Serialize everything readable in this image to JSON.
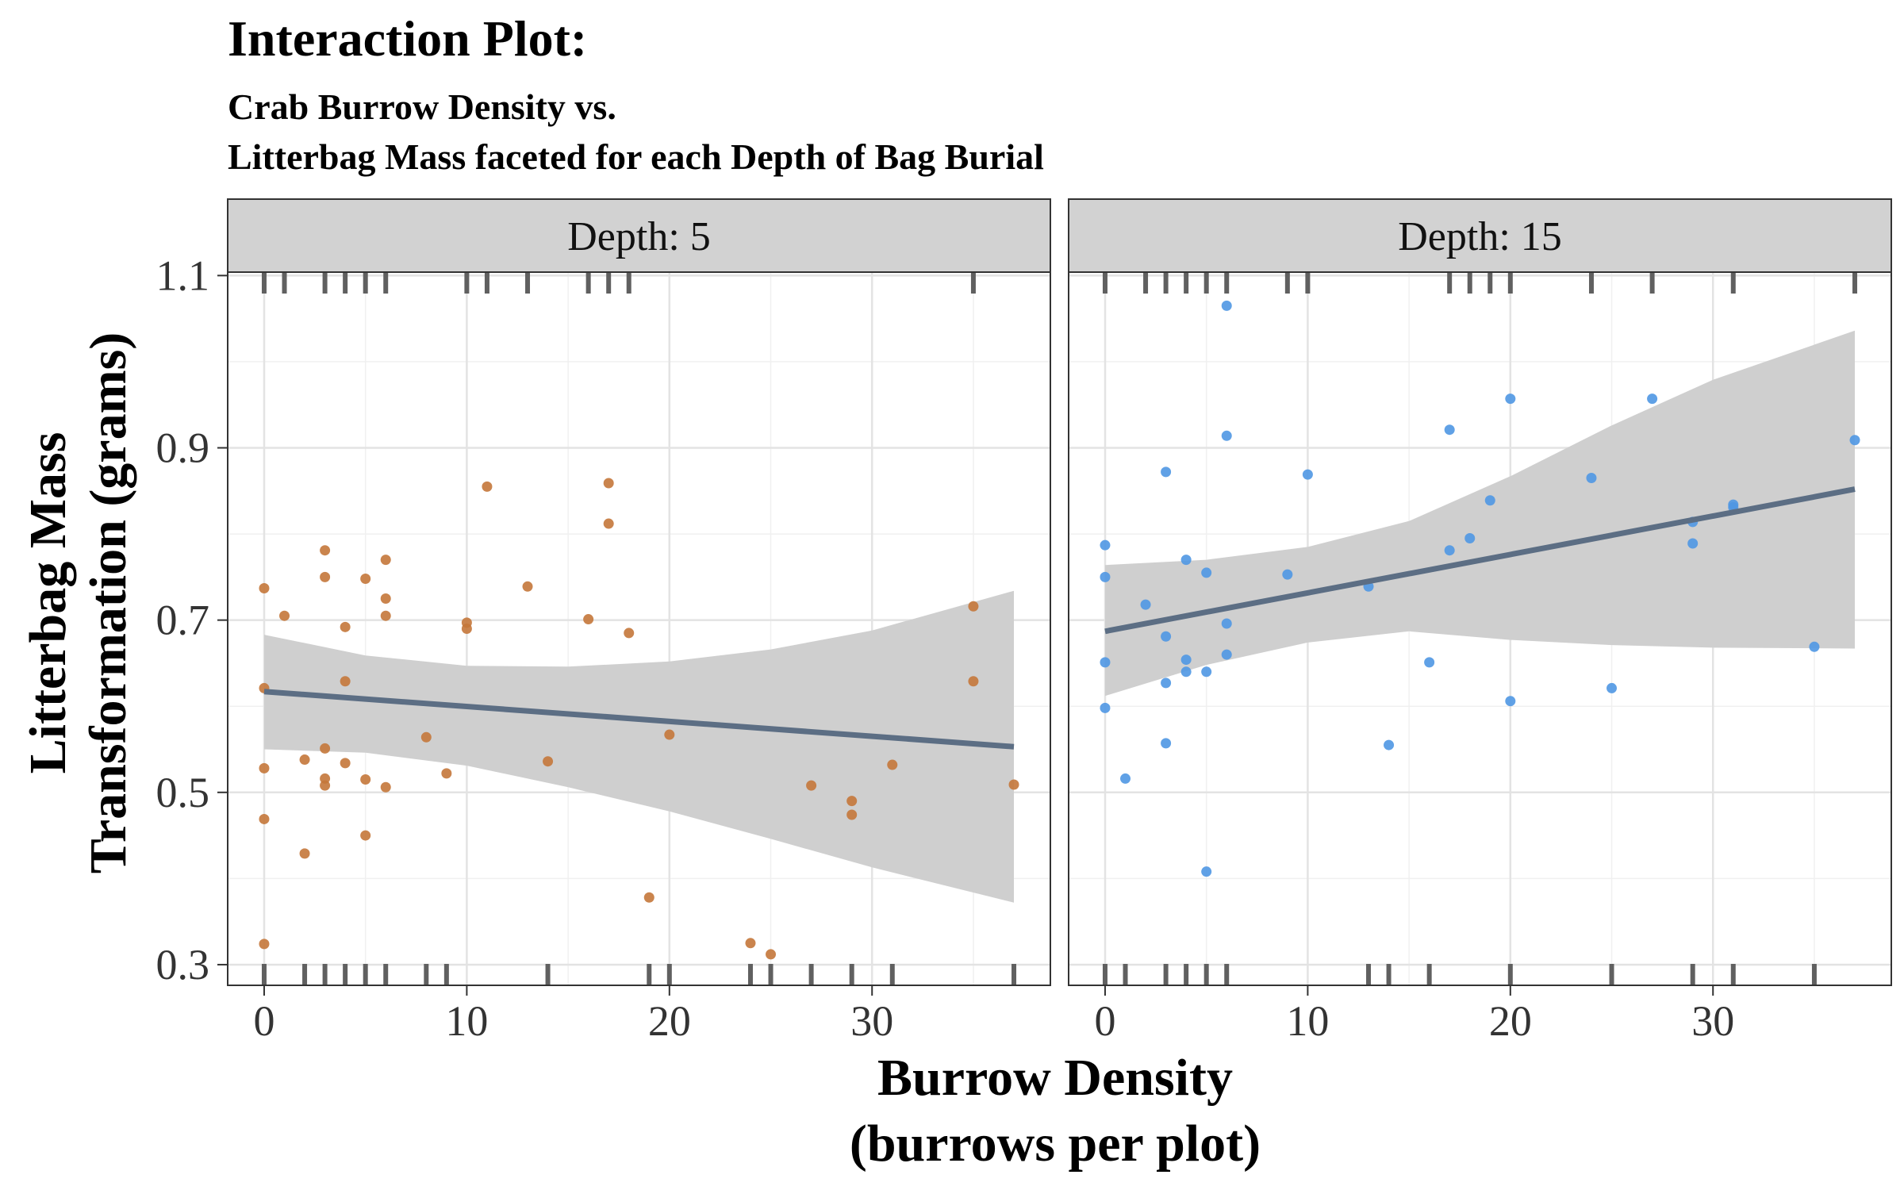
{
  "chart_data": {
    "type": "scatter",
    "title": "Interaction Plot:",
    "subtitle": [
      "Crab Burrow Density vs.",
      "Litterbag Mass faceted for each Depth of Bag Burial"
    ],
    "xlabel": [
      "Burrow Density",
      "(burrows per plot)"
    ],
    "ylabel": [
      "Litterbag Mass",
      "Transformation (grams)"
    ],
    "xlim": [
      -1.8,
      38.8
    ],
    "ylim": [
      0.276,
      1.104
    ],
    "x_ticks": [
      0,
      10,
      20,
      30
    ],
    "x_tick_labels": [
      "0",
      "10",
      "20",
      "30"
    ],
    "y_ticks": [
      0.3,
      0.5,
      0.7,
      0.9,
      1.1
    ],
    "y_tick_labels": [
      "0.3",
      "0.5",
      "0.7",
      "0.9",
      "1.1"
    ],
    "grid": true,
    "rug": true,
    "facets": [
      {
        "label": "Depth: 5",
        "color": "#c4773a",
        "line_color": "#5c6e84",
        "band_color": "#cfcfcf",
        "fit": {
          "x": [
            0,
            37
          ],
          "y": [
            0.617,
            0.553
          ]
        },
        "ci_band": {
          "x": [
            0,
            5,
            10,
            15,
            20,
            25,
            30,
            37
          ],
          "lower": [
            0.55,
            0.546,
            0.531,
            0.506,
            0.478,
            0.446,
            0.413,
            0.372
          ],
          "upper": [
            0.683,
            0.659,
            0.647,
            0.646,
            0.652,
            0.666,
            0.688,
            0.734
          ]
        },
        "points": [
          [
            0,
            0.737
          ],
          [
            0,
            0.621
          ],
          [
            0,
            0.528
          ],
          [
            0,
            0.469
          ],
          [
            0,
            0.324
          ],
          [
            1,
            0.705
          ],
          [
            2,
            0.538
          ],
          [
            2,
            0.429
          ],
          [
            3,
            0.781
          ],
          [
            3,
            0.75
          ],
          [
            3,
            0.551
          ],
          [
            3,
            0.516
          ],
          [
            3,
            0.508
          ],
          [
            4,
            0.692
          ],
          [
            4,
            0.629
          ],
          [
            4,
            0.534
          ],
          [
            5,
            0.748
          ],
          [
            5,
            0.515
          ],
          [
            5,
            0.45
          ],
          [
            6,
            0.77
          ],
          [
            6,
            0.725
          ],
          [
            6,
            0.705
          ],
          [
            6,
            0.506
          ],
          [
            8,
            0.564
          ],
          [
            9,
            0.522
          ],
          [
            10,
            0.697
          ],
          [
            10,
            0.69
          ],
          [
            11,
            0.855
          ],
          [
            13,
            0.739
          ],
          [
            14,
            0.536
          ],
          [
            16,
            0.701
          ],
          [
            17,
            0.859
          ],
          [
            17,
            0.812
          ],
          [
            18,
            0.685
          ],
          [
            19,
            0.378
          ],
          [
            20,
            0.567
          ],
          [
            24,
            0.325
          ],
          [
            25,
            0.312
          ],
          [
            27,
            0.508
          ],
          [
            29,
            0.49
          ],
          [
            29,
            0.474
          ],
          [
            31,
            0.532
          ],
          [
            35,
            0.716
          ],
          [
            35,
            0.629
          ],
          [
            37,
            0.509
          ]
        ],
        "rug_x_top": [
          0,
          1,
          3,
          4,
          5,
          6,
          10,
          11,
          13,
          16,
          17,
          18,
          35
        ],
        "rug_x_bottom": [
          0,
          2,
          3,
          4,
          5,
          6,
          8,
          9,
          14,
          19,
          20,
          24,
          25,
          27,
          29,
          31,
          37
        ]
      },
      {
        "label": "Depth: 15",
        "color": "#4f97e3",
        "line_color": "#5c6e84",
        "band_color": "#cfcfcf",
        "fit": {
          "x": [
            0,
            37
          ],
          "y": [
            0.687,
            0.852
          ]
        },
        "ci_band": {
          "x": [
            0,
            5,
            10,
            15,
            20,
            25,
            30,
            37
          ],
          "lower": [
            0.612,
            0.648,
            0.674,
            0.687,
            0.677,
            0.671,
            0.668,
            0.667
          ],
          "upper": [
            0.764,
            0.77,
            0.785,
            0.815,
            0.867,
            0.926,
            0.979,
            1.036
          ]
        },
        "points": [
          [
            0,
            0.787
          ],
          [
            0,
            0.75
          ],
          [
            0,
            0.651
          ],
          [
            0,
            0.598
          ],
          [
            1,
            0.516
          ],
          [
            2,
            0.718
          ],
          [
            3,
            0.872
          ],
          [
            3,
            0.681
          ],
          [
            3,
            0.627
          ],
          [
            3,
            0.557
          ],
          [
            4,
            0.77
          ],
          [
            4,
            0.654
          ],
          [
            4,
            0.64
          ],
          [
            5,
            0.755
          ],
          [
            5,
            0.64
          ],
          [
            5,
            0.408
          ],
          [
            6,
            1.065
          ],
          [
            6,
            0.914
          ],
          [
            6,
            0.696
          ],
          [
            6,
            0.66
          ],
          [
            9,
            0.753
          ],
          [
            10,
            0.869
          ],
          [
            13,
            0.739
          ],
          [
            14,
            0.555
          ],
          [
            16,
            0.651
          ],
          [
            17,
            0.921
          ],
          [
            17,
            0.781
          ],
          [
            18,
            0.795
          ],
          [
            19,
            0.839
          ],
          [
            20,
            0.957
          ],
          [
            20,
            0.606
          ],
          [
            24,
            0.865
          ],
          [
            25,
            0.621
          ],
          [
            27,
            0.957
          ],
          [
            29,
            0.814
          ],
          [
            29,
            0.789
          ],
          [
            31,
            0.834
          ],
          [
            31,
            0.831
          ],
          [
            35,
            0.669
          ],
          [
            37,
            0.909
          ]
        ],
        "rug_x_top": [
          0,
          2,
          3,
          4,
          5,
          6,
          9,
          10,
          17,
          18,
          19,
          20,
          24,
          27,
          31,
          37
        ],
        "rug_x_bottom": [
          0,
          1,
          3,
          4,
          5,
          6,
          13,
          14,
          16,
          20,
          25,
          29,
          31,
          35
        ]
      }
    ]
  }
}
